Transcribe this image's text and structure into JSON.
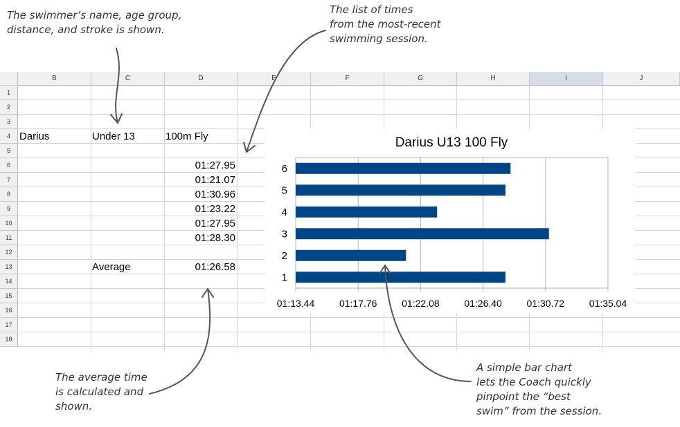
{
  "annotations": {
    "name_note": "The swimmer’s name, age group,\ndistance, and stroke is shown.",
    "times_note": "The list of times\nfrom the most-recent\nswimming session.",
    "average_note": "The average time\nis calculated and\nshown.",
    "chart_note": "A simple bar chart\nlets the Coach quickly\npinpoint the “best\nswim” from the session."
  },
  "sheet": {
    "columns": [
      "B",
      "C",
      "D",
      "E",
      "F",
      "G",
      "H",
      "I",
      "J"
    ],
    "selected_column": "I",
    "rows": [
      "1",
      "2",
      "3",
      "4",
      "5",
      "6",
      "7",
      "8",
      "9",
      "10",
      "11",
      "12",
      "13",
      "14",
      "15",
      "16",
      "17",
      "18"
    ],
    "swimmer": "Darius",
    "age_group": "Under 13",
    "event": "100m Fly",
    "times": [
      "01:27.95",
      "01:21.07",
      "01:30.96",
      "01:23.22",
      "01:27.95",
      "01:28.30"
    ],
    "average_label": "Average",
    "average_value": "01:26.58"
  },
  "chart_data": {
    "type": "bar",
    "orientation": "horizontal",
    "title": "Darius U13 100 Fly",
    "categories": [
      "1",
      "2",
      "3",
      "4",
      "5",
      "6"
    ],
    "values": [
      "01:27.95",
      "01:21.07",
      "01:30.96",
      "01:23.22",
      "01:27.95",
      "01:28.30"
    ],
    "values_seconds": [
      87.95,
      81.07,
      90.96,
      83.22,
      87.95,
      88.3
    ],
    "xlim_seconds": [
      73.44,
      95.04
    ],
    "x_ticks": [
      "01:13.44",
      "01:17.76",
      "01:22.08",
      "01:26.40",
      "01:30.72",
      "01:35.04"
    ],
    "x_tick_values_seconds": [
      73.44,
      77.76,
      82.08,
      86.4,
      90.72,
      95.04
    ],
    "grid": true,
    "bar_color": "#004586"
  }
}
